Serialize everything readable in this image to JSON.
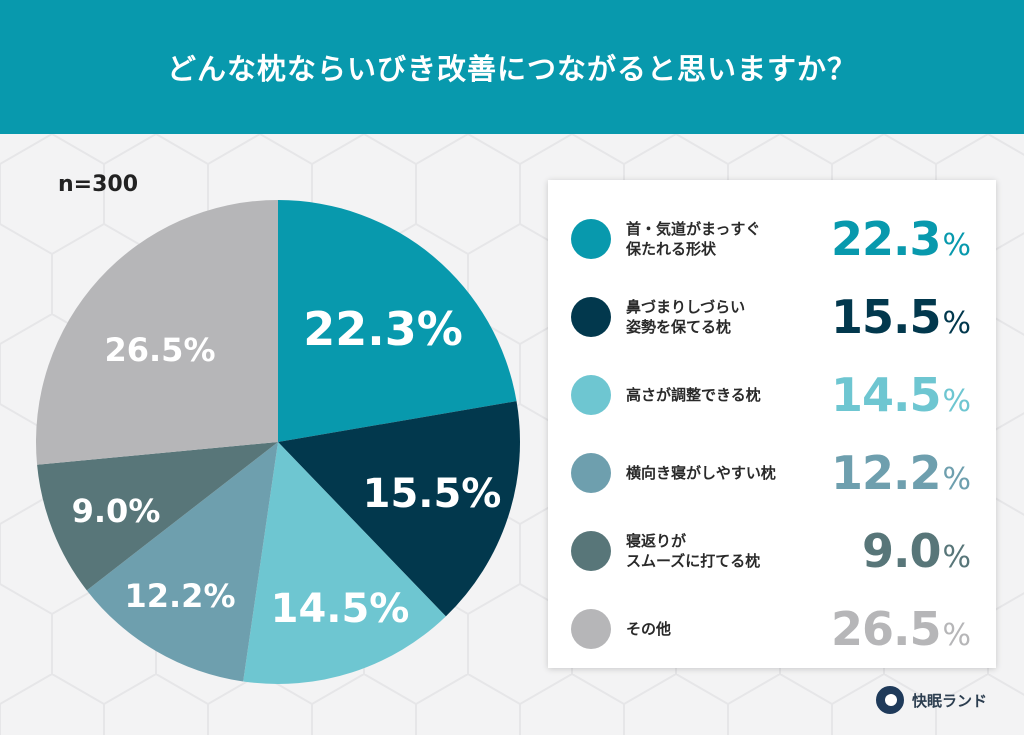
{
  "header": {
    "title": "どんな枕ならいびき改善につながると思いますか？"
  },
  "sample": {
    "label": "n=300"
  },
  "colors": {
    "header_bg": "#0899ad",
    "slice_1": "#0899ad",
    "slice_2": "#02384d",
    "slice_3": "#6ec6d1",
    "slice_4": "#6e9fae",
    "slice_5": "#587679",
    "slice_6": "#b6b6b8"
  },
  "legend": {
    "items": [
      {
        "line1": "首・気道がまっすぐ",
        "line2": "保たれる形状",
        "value": "22.3",
        "pct": "%",
        "color": "#0899ad"
      },
      {
        "line1": "鼻づまりしづらい",
        "line2": "姿勢を保てる枕",
        "value": "15.5",
        "pct": "%",
        "color": "#02384d"
      },
      {
        "line1": "高さが調整できる枕",
        "line2": "",
        "value": "14.5",
        "pct": "%",
        "color": "#6ec6d1"
      },
      {
        "line1": "横向き寝がしやすい枕",
        "line2": "",
        "value": "12.2",
        "pct": "%",
        "color": "#6e9fae"
      },
      {
        "line1": "寝返りが",
        "line2": "スムーズに打てる枕",
        "value": "9.0",
        "pct": "%",
        "color": "#587679"
      },
      {
        "line1": "その他",
        "line2": "",
        "value": "26.5",
        "pct": "%",
        "color": "#b6b6b8"
      }
    ]
  },
  "pie_labels": {
    "s1": "22.3%",
    "s2": "15.5%",
    "s3": "14.5%",
    "s4": "12.2%",
    "s5": "9.0%",
    "s6": "26.5%"
  },
  "brand": {
    "name": "快眠ランド"
  },
  "chart_data": {
    "type": "pie",
    "title": "どんな枕ならいびき改善につながると思いますか？",
    "subtitle": "n=300",
    "categories": [
      "首・気道がまっすぐ保たれる形状",
      "鼻づまりしづらい姿勢を保てる枕",
      "高さが調整できる枕",
      "横向き寝がしやすい枕",
      "寝返りがスムーズに打てる枕",
      "その他"
    ],
    "values": [
      22.3,
      15.5,
      14.5,
      12.2,
      9.0,
      26.5
    ],
    "unit": "%",
    "colors": [
      "#0899ad",
      "#02384d",
      "#6ec6d1",
      "#6e9fae",
      "#587679",
      "#b6b6b8"
    ],
    "start_angle": "12 o'clock, clockwise",
    "legend_position": "right"
  }
}
